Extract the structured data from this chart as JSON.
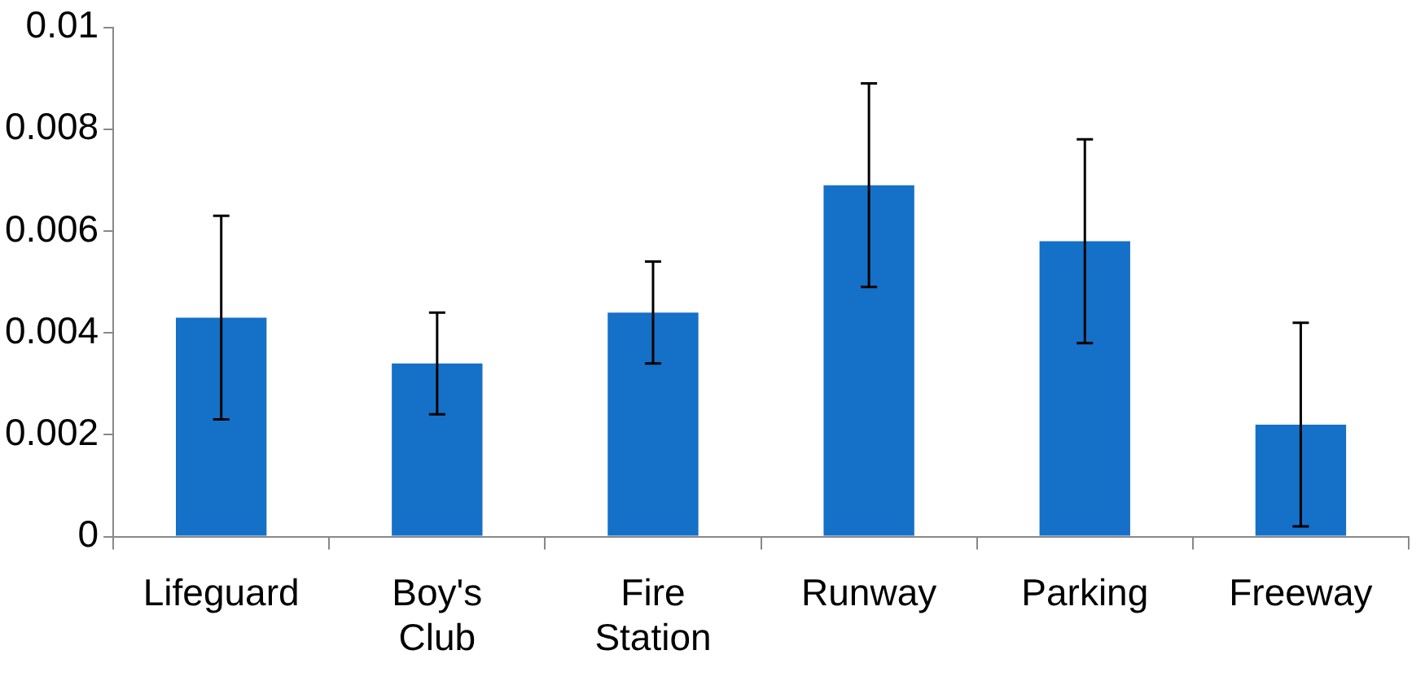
{
  "chart_data": {
    "type": "bar",
    "categories": [
      "Lifeguard",
      "Boy's Club",
      "Fire Station",
      "Runway",
      "Parking",
      "Freeway"
    ],
    "values": [
      0.0043,
      0.0034,
      0.0044,
      0.0069,
      0.0058,
      0.0022
    ],
    "errors": [
      0.002,
      0.001,
      0.001,
      0.002,
      0.002,
      0.002
    ],
    "color": "#1570c8",
    "ylim": [
      0,
      0.01
    ],
    "yticks": [
      0,
      0.002,
      0.004,
      0.006,
      0.008,
      0.01
    ],
    "grid": false,
    "legend": false
  }
}
